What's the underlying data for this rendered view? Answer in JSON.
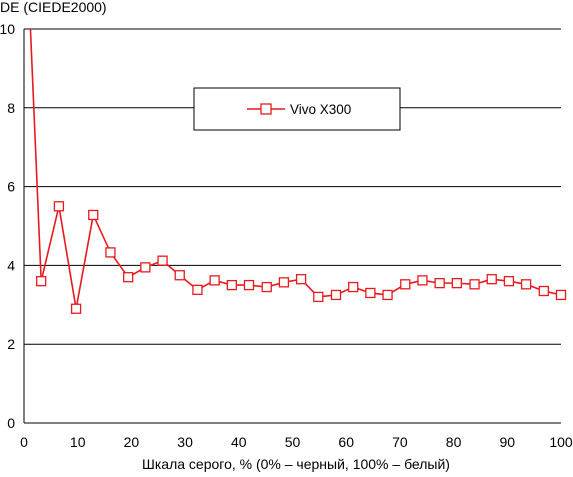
{
  "chart_data": {
    "type": "line",
    "ylabel": "DE (CIEDE2000)",
    "xlabel": "Шкала серого, % (0% – черный, 100% – белый)",
    "xlim": [
      0,
      100
    ],
    "ylim": [
      0,
      10
    ],
    "x_ticks": [
      0,
      10,
      20,
      30,
      40,
      50,
      60,
      70,
      80,
      90,
      100
    ],
    "y_ticks": [
      0,
      2,
      4,
      6,
      8,
      10
    ],
    "grid": "horizontal",
    "legend_position": "top-center",
    "series": [
      {
        "name": "Vivo X300",
        "color": "#e8191f",
        "marker": "square-open",
        "lead_in": {
          "x": [
            1.2,
            3.2
          ],
          "y": [
            10,
            3.6
          ]
        },
        "points": [
          {
            "x": 3.2,
            "y": 3.6
          },
          {
            "x": 6.5,
            "y": 5.5
          },
          {
            "x": 9.7,
            "y": 2.9
          },
          {
            "x": 12.9,
            "y": 5.28
          },
          {
            "x": 16.1,
            "y": 4.33
          },
          {
            "x": 19.4,
            "y": 3.7
          },
          {
            "x": 22.6,
            "y": 3.95
          },
          {
            "x": 25.8,
            "y": 4.12
          },
          {
            "x": 29.0,
            "y": 3.75
          },
          {
            "x": 32.3,
            "y": 3.38
          },
          {
            "x": 35.5,
            "y": 3.62
          },
          {
            "x": 38.7,
            "y": 3.5
          },
          {
            "x": 41.9,
            "y": 3.5
          },
          {
            "x": 45.2,
            "y": 3.45
          },
          {
            "x": 48.4,
            "y": 3.57
          },
          {
            "x": 51.6,
            "y": 3.65
          },
          {
            "x": 54.8,
            "y": 3.2
          },
          {
            "x": 58.1,
            "y": 3.25
          },
          {
            "x": 61.3,
            "y": 3.45
          },
          {
            "x": 64.5,
            "y": 3.3
          },
          {
            "x": 67.7,
            "y": 3.25
          },
          {
            "x": 71.0,
            "y": 3.52
          },
          {
            "x": 74.2,
            "y": 3.62
          },
          {
            "x": 77.4,
            "y": 3.55
          },
          {
            "x": 80.6,
            "y": 3.55
          },
          {
            "x": 83.9,
            "y": 3.52
          },
          {
            "x": 87.1,
            "y": 3.65
          },
          {
            "x": 90.3,
            "y": 3.6
          },
          {
            "x": 93.5,
            "y": 3.52
          },
          {
            "x": 96.8,
            "y": 3.35
          },
          {
            "x": 100,
            "y": 3.25
          }
        ]
      }
    ]
  },
  "colors": {
    "series": "#e8191f",
    "grid": "#000000",
    "axis": "#000000"
  }
}
